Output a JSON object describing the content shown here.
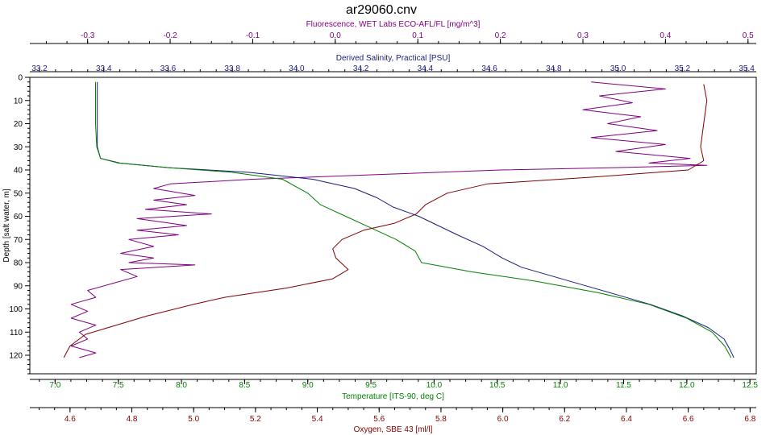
{
  "chart_data": {
    "type": "line",
    "title": "ar29060.cnv",
    "depth_axis": {
      "label": "Depth [salt water, m]",
      "range": [
        0,
        128
      ],
      "ticks": [
        0,
        10,
        20,
        30,
        40,
        50,
        60,
        70,
        80,
        90,
        100,
        110,
        120
      ],
      "inverted": true
    },
    "x_axes": [
      {
        "key": "fluorescence",
        "label": "Fluorescence, WET Labs ECO-AFL/FL [mg/m^3]",
        "position": "top-outer",
        "color": "#800080",
        "range": [
          -0.37,
          0.51
        ],
        "ticks": [
          "-0.3",
          "-0.2",
          "-0.1",
          "0.0",
          "0.1",
          "0.2",
          "0.3",
          "0.4",
          "0.5"
        ]
      },
      {
        "key": "salinity",
        "label": "Derived Salinity, Practical [PSU]",
        "position": "top-inner",
        "color": "#1a1a80",
        "range": [
          33.17,
          35.43
        ],
        "ticks": [
          "33.2",
          "33.4",
          "33.6",
          "33.8",
          "34.0",
          "34.2",
          "34.4",
          "34.6",
          "34.8",
          "35.0",
          "35.2",
          "35.4"
        ]
      },
      {
        "key": "temperature",
        "label": "Temperature [ITS-90, deg C]",
        "position": "bottom-inner",
        "color": "#008000",
        "range": [
          6.8,
          12.55
        ],
        "ticks": [
          "7.0",
          "7.5",
          "8.0",
          "8.5",
          "9.0",
          "9.5",
          "10.0",
          "10.5",
          "11.0",
          "11.5",
          "12.0",
          "12.5"
        ]
      },
      {
        "key": "oxygen",
        "label": "Oxygen, SBE 43 [ml/l]",
        "position": "bottom-outer",
        "color": "#800000",
        "range": [
          4.47,
          6.82
        ],
        "ticks": [
          "4.6",
          "4.8",
          "5.0",
          "5.2",
          "5.4",
          "5.6",
          "5.8",
          "6.0",
          "6.2",
          "6.4",
          "6.6",
          "6.8"
        ]
      }
    ],
    "series": [
      {
        "axis": "fluorescence",
        "color": "#800080",
        "points": [
          [
            0.31,
            2
          ],
          [
            0.4,
            5
          ],
          [
            0.32,
            8
          ],
          [
            0.36,
            11
          ],
          [
            0.3,
            14
          ],
          [
            0.37,
            17
          ],
          [
            0.33,
            20
          ],
          [
            0.39,
            23
          ],
          [
            0.31,
            26
          ],
          [
            0.4,
            29
          ],
          [
            0.34,
            32
          ],
          [
            0.43,
            35
          ],
          [
            0.38,
            37
          ],
          [
            0.45,
            38
          ],
          [
            0.34,
            39
          ],
          [
            0.2,
            40
          ],
          [
            0.05,
            42
          ],
          [
            -0.1,
            44
          ],
          [
            -0.2,
            46
          ],
          [
            -0.22,
            48
          ],
          [
            -0.17,
            51
          ],
          [
            -0.22,
            53
          ],
          [
            -0.18,
            55
          ],
          [
            -0.23,
            57
          ],
          [
            -0.15,
            59
          ],
          [
            -0.24,
            61
          ],
          [
            -0.18,
            64
          ],
          [
            -0.24,
            66
          ],
          [
            -0.19,
            68
          ],
          [
            -0.25,
            70
          ],
          [
            -0.22,
            73
          ],
          [
            -0.26,
            76
          ],
          [
            -0.22,
            78
          ],
          [
            -0.25,
            80
          ],
          [
            -0.17,
            81
          ],
          [
            -0.26,
            83
          ],
          [
            -0.24,
            86
          ],
          [
            -0.27,
            89
          ],
          [
            -0.3,
            92
          ],
          [
            -0.29,
            95
          ],
          [
            -0.32,
            98
          ],
          [
            -0.3,
            101
          ],
          [
            -0.32,
            104
          ],
          [
            -0.29,
            107
          ],
          [
            -0.31,
            110
          ],
          [
            -0.3,
            113
          ],
          [
            -0.32,
            116
          ],
          [
            -0.29,
            119
          ],
          [
            -0.31,
            121
          ]
        ]
      },
      {
        "axis": "salinity",
        "color": "#1a1a80",
        "points": [
          [
            33.38,
            2
          ],
          [
            33.38,
            10
          ],
          [
            33.38,
            20
          ],
          [
            33.38,
            30
          ],
          [
            33.39,
            35
          ],
          [
            33.45,
            37
          ],
          [
            33.6,
            39
          ],
          [
            33.85,
            41
          ],
          [
            34.05,
            44
          ],
          [
            34.18,
            48
          ],
          [
            34.25,
            52
          ],
          [
            34.3,
            56
          ],
          [
            34.38,
            60
          ],
          [
            34.44,
            64
          ],
          [
            34.5,
            68
          ],
          [
            34.58,
            73
          ],
          [
            34.64,
            78
          ],
          [
            34.7,
            82
          ],
          [
            34.8,
            86
          ],
          [
            34.9,
            90
          ],
          [
            35.0,
            94
          ],
          [
            35.1,
            98
          ],
          [
            35.2,
            103
          ],
          [
            35.28,
            108
          ],
          [
            35.33,
            113
          ],
          [
            35.35,
            118
          ],
          [
            35.36,
            121
          ]
        ]
      },
      {
        "axis": "temperature",
        "color": "#008000",
        "points": [
          [
            7.32,
            2
          ],
          [
            7.32,
            10
          ],
          [
            7.32,
            20
          ],
          [
            7.33,
            30
          ],
          [
            7.36,
            35
          ],
          [
            7.5,
            37
          ],
          [
            7.9,
            39
          ],
          [
            8.4,
            41
          ],
          [
            8.8,
            44
          ],
          [
            9.0,
            50
          ],
          [
            9.1,
            55
          ],
          [
            9.3,
            60
          ],
          [
            9.5,
            65
          ],
          [
            9.7,
            70
          ],
          [
            9.85,
            75
          ],
          [
            9.9,
            80
          ],
          [
            10.3,
            84
          ],
          [
            10.8,
            88
          ],
          [
            11.3,
            93
          ],
          [
            11.7,
            98
          ],
          [
            12.0,
            104
          ],
          [
            12.2,
            110
          ],
          [
            12.3,
            116
          ],
          [
            12.35,
            121
          ]
        ]
      },
      {
        "axis": "oxygen",
        "color": "#800000",
        "points": [
          [
            6.65,
            3
          ],
          [
            6.66,
            10
          ],
          [
            6.65,
            20
          ],
          [
            6.64,
            30
          ],
          [
            6.65,
            36
          ],
          [
            6.6,
            40
          ],
          [
            6.3,
            43
          ],
          [
            5.95,
            46
          ],
          [
            5.82,
            50
          ],
          [
            5.75,
            55
          ],
          [
            5.72,
            59
          ],
          [
            5.65,
            63
          ],
          [
            5.55,
            66
          ],
          [
            5.48,
            70
          ],
          [
            5.45,
            74
          ],
          [
            5.46,
            78
          ],
          [
            5.5,
            83
          ],
          [
            5.45,
            87
          ],
          [
            5.3,
            91
          ],
          [
            5.1,
            95
          ],
          [
            5.0,
            98
          ],
          [
            4.85,
            103
          ],
          [
            4.75,
            107
          ],
          [
            4.65,
            111
          ],
          [
            4.6,
            116
          ],
          [
            4.58,
            121
          ]
        ]
      }
    ]
  }
}
